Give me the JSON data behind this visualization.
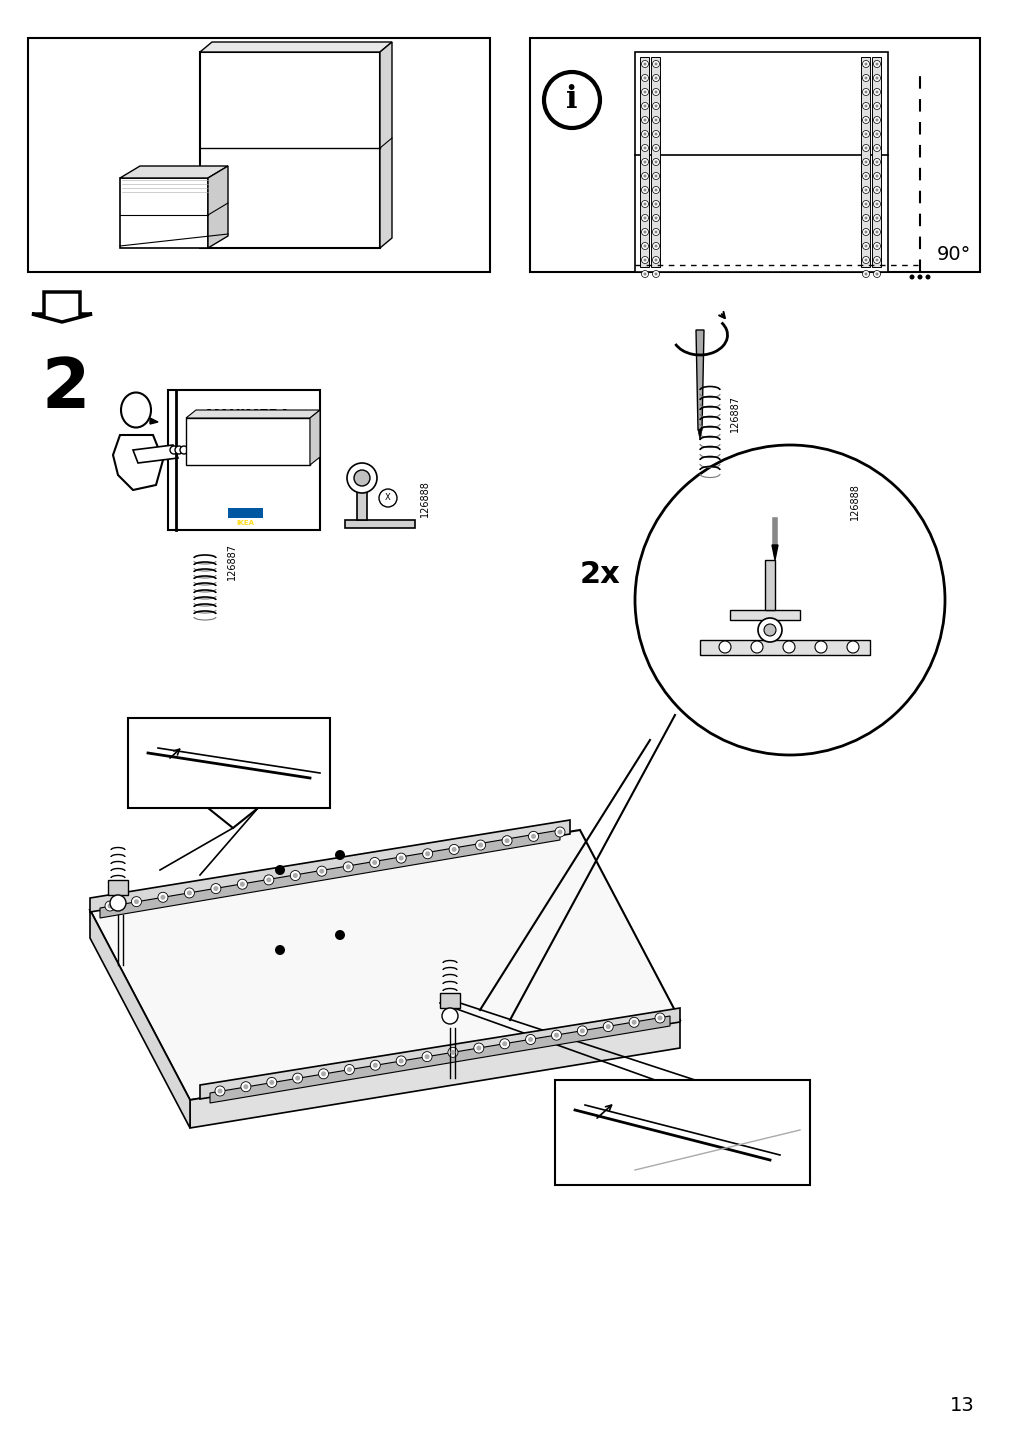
{
  "page_number": "13",
  "bg": "#ffffff",
  "lc": "#000000",
  "step2_label": "2",
  "maximera_label": "MAXIMERA",
  "part_number_1": "126887",
  "part_number_2": "126888",
  "angle_label": "90°",
  "quantity_label": "2x"
}
